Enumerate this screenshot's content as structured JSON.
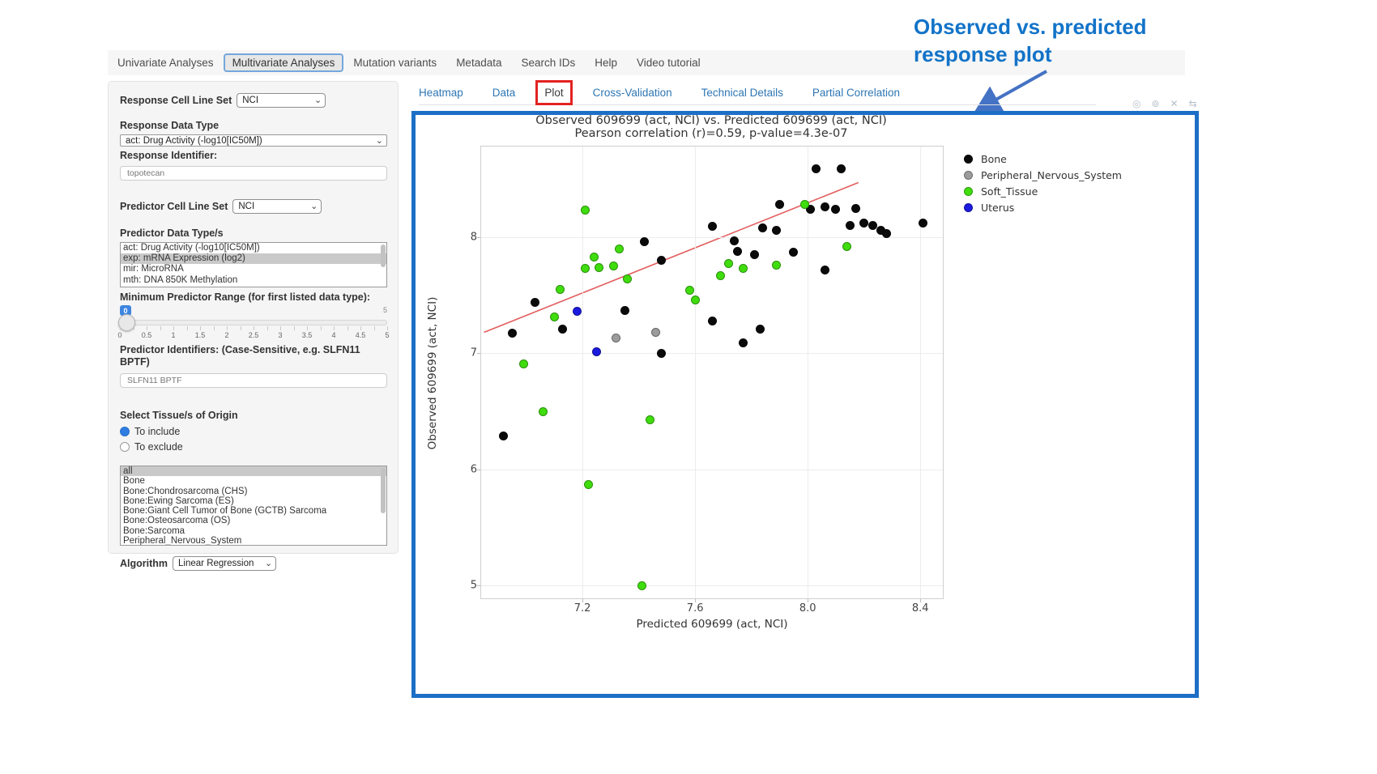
{
  "annotation": {
    "line1": "Observed  vs. predicted",
    "line2": "response plot"
  },
  "nav": {
    "tabs": [
      {
        "label": "Univariate Analyses",
        "active": false
      },
      {
        "label": "Multivariate Analyses",
        "active": true
      },
      {
        "label": "Mutation variants",
        "active": false
      },
      {
        "label": "Metadata",
        "active": false
      },
      {
        "label": "Search IDs",
        "active": false
      },
      {
        "label": "Help",
        "active": false
      },
      {
        "label": "Video tutorial",
        "active": false
      }
    ]
  },
  "sidebar": {
    "response_cell_line_set": {
      "label": "Response Cell Line Set",
      "value": "NCI"
    },
    "response_data_type": {
      "label": "Response Data Type",
      "value": "act: Drug Activity (-log10[IC50M])"
    },
    "response_identifier": {
      "label": "Response Identifier:",
      "value": "topotecan"
    },
    "predictor_cell_line_set": {
      "label": "Predictor Cell Line Set",
      "value": "NCI"
    },
    "predictor_data_types": {
      "label": "Predictor Data Type/s",
      "options": [
        "act: Drug Activity (-log10[IC50M])",
        "exp: mRNA Expression (log2)",
        "mir: MicroRNA",
        "mth: DNA 850K Methylation"
      ],
      "selected_index": 1
    },
    "min_predictor_range": {
      "label": "Minimum Predictor Range (for first listed data type):",
      "value": "0",
      "max_label": "5",
      "tick_labels": [
        "0",
        "0.5",
        "1",
        "1.5",
        "2",
        "2.5",
        "3",
        "3.5",
        "4",
        "4.5",
        "5"
      ]
    },
    "predictor_identifiers": {
      "label": "Predictor Identifiers: (Case-Sensitive, e.g. SLFN11 BPTF)",
      "value": "SLFN11 BPTF"
    },
    "tissue_origin": {
      "label": "Select Tissue/s of Origin",
      "radios": [
        {
          "label": "To include",
          "selected": true
        },
        {
          "label": "To exclude",
          "selected": false
        }
      ],
      "options": [
        "all",
        "Bone",
        "Bone:Chondrosarcoma (CHS)",
        "Bone:Ewing Sarcoma (ES)",
        "Bone:Giant Cell Tumor of Bone (GCTB) Sarcoma",
        "Bone:Osteosarcoma (OS)",
        "Bone:Sarcoma",
        "Peripheral_Nervous_System"
      ],
      "selected_index": 0
    },
    "algorithm": {
      "label": "Algorithm",
      "value": "Linear Regression"
    }
  },
  "subtabs": {
    "tabs": [
      {
        "label": "Heatmap",
        "active": false
      },
      {
        "label": "Data",
        "active": false
      },
      {
        "label": "Plot",
        "active": true,
        "highlighted": true
      },
      {
        "label": "Cross-Validation",
        "active": false
      },
      {
        "label": "Technical Details",
        "active": false
      },
      {
        "label": "Partial Correlation",
        "active": false
      }
    ]
  },
  "toolbar_icons": [
    {
      "name": "camera-icon",
      "glyph": "◎"
    },
    {
      "name": "zoom-icon",
      "glyph": "⊚"
    },
    {
      "name": "close-icon",
      "glyph": "✕"
    },
    {
      "name": "expand-icon",
      "glyph": "⇆"
    }
  ],
  "chart_data": {
    "type": "scatter",
    "title": "Observed 609699 (act, NCI) vs. Predicted 609699 (act, NCI)",
    "subtitle": "Pearson correlation (r)=0.59, p-value=4.3e-07",
    "xlabel": "Predicted 609699 (act, NCI)",
    "ylabel": "Observed 609699 (act, NCI)",
    "xlim": [
      6.84,
      8.48
    ],
    "ylim": [
      4.89,
      8.78
    ],
    "xticks": [
      {
        "v": 7.2,
        "label": "7.2"
      },
      {
        "v": 7.6,
        "label": "7.6"
      },
      {
        "v": 8.0,
        "label": "8.0"
      },
      {
        "v": 8.4,
        "label": "8.4"
      }
    ],
    "yticks": [
      {
        "v": 5,
        "label": "5"
      },
      {
        "v": 6,
        "label": "6"
      },
      {
        "v": 7,
        "label": "7"
      },
      {
        "v": 8,
        "label": "8"
      }
    ],
    "grid": true,
    "legend_position": "right-top",
    "series": [
      {
        "name": "Bone",
        "color": "#0a0a0a",
        "points": [
          [
            8.03,
            8.59
          ],
          [
            8.12,
            8.59
          ],
          [
            7.9,
            8.28
          ],
          [
            8.01,
            8.24
          ],
          [
            8.06,
            8.26
          ],
          [
            8.1,
            8.24
          ],
          [
            8.17,
            8.25
          ],
          [
            7.66,
            8.09
          ],
          [
            7.84,
            8.08
          ],
          [
            7.89,
            8.06
          ],
          [
            8.15,
            8.1
          ],
          [
            8.2,
            8.12
          ],
          [
            8.23,
            8.1
          ],
          [
            8.26,
            8.06
          ],
          [
            8.28,
            8.03
          ],
          [
            8.41,
            8.12
          ],
          [
            7.42,
            7.96
          ],
          [
            7.74,
            7.97
          ],
          [
            7.75,
            7.88
          ],
          [
            7.81,
            7.85
          ],
          [
            7.95,
            7.87
          ],
          [
            8.06,
            7.72
          ],
          [
            7.48,
            7.8
          ],
          [
            7.03,
            7.44
          ],
          [
            7.35,
            7.37
          ],
          [
            7.13,
            7.21
          ],
          [
            6.95,
            7.17
          ],
          [
            7.66,
            7.28
          ],
          [
            7.83,
            7.21
          ],
          [
            7.77,
            7.09
          ],
          [
            7.48,
            7.0
          ],
          [
            6.92,
            6.29
          ]
        ]
      },
      {
        "name": "Peripheral_Nervous_System",
        "color": "#9c9c9c",
        "points": [
          [
            7.32,
            7.13
          ],
          [
            7.46,
            7.18
          ]
        ]
      },
      {
        "name": "Soft_Tissue",
        "color": "#3fdd0e",
        "points": [
          [
            7.21,
            8.23
          ],
          [
            7.99,
            8.28
          ],
          [
            8.14,
            7.92
          ],
          [
            7.33,
            7.9
          ],
          [
            7.24,
            7.83
          ],
          [
            7.21,
            7.73
          ],
          [
            7.26,
            7.74
          ],
          [
            7.31,
            7.75
          ],
          [
            7.36,
            7.64
          ],
          [
            7.72,
            7.77
          ],
          [
            7.77,
            7.73
          ],
          [
            7.89,
            7.76
          ],
          [
            7.69,
            7.67
          ],
          [
            7.58,
            7.54
          ],
          [
            7.6,
            7.46
          ],
          [
            7.12,
            7.55
          ],
          [
            7.1,
            7.31
          ],
          [
            6.99,
            6.91
          ],
          [
            7.06,
            6.5
          ],
          [
            7.44,
            6.43
          ],
          [
            7.22,
            5.87
          ],
          [
            7.41,
            5.0
          ]
        ]
      },
      {
        "name": "Uterus",
        "color": "#1a1ae0",
        "points": [
          [
            7.18,
            7.36
          ],
          [
            7.25,
            7.01
          ]
        ]
      }
    ],
    "regression_line": {
      "color": "#e35d5d",
      "from": [
        6.85,
        7.18
      ],
      "to": [
        8.18,
        8.47
      ]
    }
  },
  "colors": {
    "container_border": "#1d6fc6",
    "annotation_blue": "#1273c8",
    "tab_blue": "#2e76b4",
    "red_highlight": "#e32222"
  }
}
